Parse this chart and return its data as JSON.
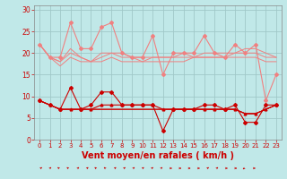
{
  "x": [
    0,
    1,
    2,
    3,
    4,
    5,
    6,
    7,
    8,
    9,
    10,
    11,
    12,
    13,
    14,
    15,
    16,
    17,
    18,
    19,
    20,
    21,
    22,
    23
  ],
  "background_color": "#c0e8e8",
  "grid_color": "#a0c8c8",
  "xlabel": "Vent moyen/en rafales ( km/h )",
  "xlabel_color": "#cc0000",
  "xlabel_fontsize": 7,
  "tick_color": "#cc0000",
  "ylim": [
    0,
    31
  ],
  "yticks": [
    0,
    5,
    10,
    15,
    20,
    25,
    30
  ],
  "lines_pink": [
    [
      22,
      19,
      19,
      27,
      21,
      21,
      26,
      27,
      20,
      19,
      19,
      24,
      15,
      20,
      20,
      20,
      24,
      20,
      19,
      22,
      20,
      22,
      9,
      15
    ],
    [
      22,
      19,
      18,
      21,
      19,
      18,
      20,
      20,
      20,
      19,
      18,
      19,
      19,
      19,
      20,
      19,
      20,
      20,
      20,
      20,
      21,
      21,
      20,
      19
    ],
    [
      22,
      19,
      18,
      20,
      19,
      18,
      19,
      20,
      19,
      19,
      19,
      19,
      19,
      19,
      19,
      19,
      19,
      19,
      19,
      20,
      20,
      20,
      19,
      19
    ],
    [
      22,
      19,
      17,
      19,
      18,
      18,
      18,
      19,
      18,
      18,
      18,
      18,
      18,
      18,
      18,
      19,
      19,
      19,
      19,
      19,
      19,
      19,
      18,
      18
    ]
  ],
  "lines_red": [
    [
      9,
      8,
      7,
      12,
      7,
      8,
      11,
      11,
      8,
      8,
      8,
      8,
      2,
      7,
      7,
      7,
      8,
      8,
      7,
      8,
      4,
      4,
      8,
      8
    ],
    [
      9,
      8,
      7,
      7,
      7,
      7,
      8,
      8,
      8,
      8,
      8,
      8,
      7,
      7,
      7,
      7,
      7,
      7,
      7,
      7,
      6,
      6,
      7,
      8
    ],
    [
      9,
      8,
      7,
      7,
      7,
      7,
      7,
      7,
      7,
      7,
      7,
      7,
      7,
      7,
      7,
      7,
      7,
      7,
      7,
      7,
      6,
      6,
      7,
      8
    ],
    [
      9,
      8,
      7,
      7,
      7,
      7,
      7,
      7,
      7,
      7,
      7,
      7,
      7,
      7,
      7,
      7,
      7,
      7,
      7,
      7,
      6,
      6,
      7,
      8
    ]
  ],
  "wind_directions": [
    1,
    1,
    2,
    2,
    1,
    1,
    2,
    2,
    1,
    1,
    1,
    1,
    1,
    1,
    0,
    0,
    0,
    0,
    1,
    1,
    0,
    0,
    3,
    0
  ],
  "pink_color": "#f08080",
  "red_color": "#cc0000"
}
